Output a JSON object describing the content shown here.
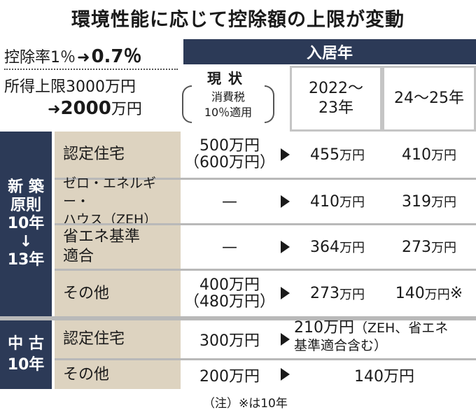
{
  "title": "環境性能に応じて控除額の上限が変動",
  "rate": {
    "label": "控除率1％",
    "arrow": "➜",
    "new": "0.7％"
  },
  "limit": {
    "line1": "所得上限3000万円",
    "arrow": "➜",
    "new": "2000",
    "unit": "万円"
  },
  "header": {
    "nyukyo": "入居年",
    "genjo_title": "現状",
    "genjo_sub1": "消費税",
    "genjo_sub2": "10％適用",
    "year1_line1": "2022～",
    "year1_line2": "23年",
    "year2": "24～25年"
  },
  "new_group": {
    "label_lines": [
      "新 築",
      "原則",
      "10年",
      "↓",
      "13年"
    ],
    "rows": [
      {
        "label1": "認定住宅",
        "label2": "",
        "current1": "500万円",
        "current2": "（600万円）",
        "y2022": "455",
        "y2024": "410",
        "mark": ""
      },
      {
        "label1": "ゼロ・エネルギー・",
        "label2": "ハウス（ZEH）",
        "current1": "—",
        "current2": "",
        "y2022": "410",
        "y2024": "319",
        "mark": ""
      },
      {
        "label1": "省エネ基準",
        "label2": "適合",
        "current1": "—",
        "current2": "",
        "y2022": "364",
        "y2024": "273",
        "mark": ""
      },
      {
        "label1": "その他",
        "label2": "",
        "current1": "400万円",
        "current2": "（480万円）",
        "y2022": "273",
        "y2024": "140",
        "mark": "※"
      }
    ]
  },
  "used_group": {
    "label_lines": [
      "中 古",
      "10年"
    ],
    "rows": [
      {
        "label": "認定住宅",
        "current": "300万円",
        "value1": "210万円",
        "value2": "（ZEH、省エネ",
        "value3": "基準適合含む）"
      },
      {
        "label": "その他",
        "current": "200万円",
        "value1": "140万円"
      }
    ]
  },
  "unit": "万円",
  "note": "（注）※は10年"
}
